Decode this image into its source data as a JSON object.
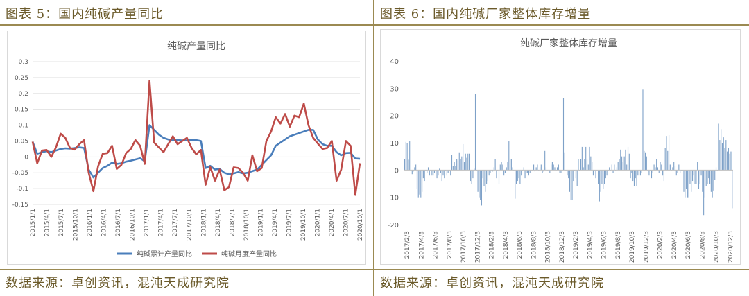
{
  "left": {
    "figure_title": "图表 5：国内纯碱产量同比",
    "source": "数据来源：卓创资讯，混沌天成研究院"
  },
  "right": {
    "figure_title": "图表 6：国内纯碱厂家整体库存增量",
    "source": "数据来源：卓创资讯，混沌天成研究院"
  },
  "colors": {
    "cumulative": "#4a7ebb",
    "monthly": "#be4b48",
    "bars": "#7ea1c8",
    "frame": "#9b8a52"
  },
  "chart_data": [
    {
      "type": "line",
      "title": "纯碱产量同比",
      "ylim": [
        -0.15,
        0.3
      ],
      "yticks": [
        -0.15,
        -0.1,
        -0.05,
        0,
        0.05,
        0.1,
        0.15,
        0.2,
        0.25,
        0.3
      ],
      "ytick_labels": [
        "-0.15",
        "-0.1",
        "-0.05",
        "0",
        "0.05",
        "0.1",
        "0.15",
        "0.2",
        "0.25",
        "0.3"
      ],
      "xtick_labels": [
        "2015/1/1",
        "2015/4/1",
        "2015/7/1",
        "2015/10/1",
        "2016/1/1",
        "2016/4/1",
        "2016/7/1",
        "2016/10/1",
        "2017/1/1",
        "2017/4/1",
        "2017/7/1",
        "2017/10/1",
        "2018/1/1",
        "2018/4/1",
        "2018/7/1",
        "2018/10/1",
        "2019/1/1",
        "2019/4/1",
        "2019/7/1",
        "2019/10/1",
        "2020/1/1",
        "2020/4/1",
        "2020/7/1",
        "2020/10/1"
      ],
      "grid": true,
      "legend_position": "bottom",
      "series": [
        {
          "name": "纯碱累计产量同比",
          "values": [
            0.048,
            0.01,
            0.015,
            0.018,
            0.015,
            0.02,
            0.025,
            0.027,
            0.026,
            0.028,
            0.03,
            0.028,
            -0.04,
            -0.065,
            -0.05,
            -0.035,
            -0.028,
            -0.018,
            -0.022,
            -0.02,
            -0.015,
            -0.012,
            -0.008,
            -0.004,
            -0.014,
            0.1,
            0.085,
            0.07,
            0.06,
            0.055,
            0.053,
            0.053,
            0.052,
            0.052,
            0.054,
            0.053,
            0.05,
            -0.035,
            -0.028,
            -0.04,
            -0.038,
            -0.05,
            -0.055,
            -0.052,
            -0.048,
            -0.052,
            -0.05,
            -0.045,
            -0.04,
            -0.025,
            -0.01,
            0.005,
            0.035,
            0.045,
            0.055,
            0.065,
            0.07,
            0.075,
            0.08,
            0.085,
            0.085,
            0.055,
            0.04,
            0.035,
            0.035,
            0.015,
            0.005,
            0.012,
            0.013,
            -0.005,
            -0.006
          ]
        },
        {
          "name": "纯碱月度产量同比",
          "values": [
            0.048,
            -0.02,
            0.02,
            0.022,
            0.0,
            0.03,
            0.073,
            0.06,
            0.028,
            0.023,
            0.04,
            0.053,
            -0.05,
            -0.108,
            -0.03,
            0.01,
            0.012,
            0.035,
            -0.038,
            -0.025,
            0.012,
            0.025,
            0.053,
            0.035,
            -0.022,
            0.24,
            0.045,
            0.03,
            0.015,
            0.04,
            0.065,
            0.04,
            0.05,
            0.06,
            0.028,
            0.008,
            0.022,
            -0.088,
            -0.032,
            -0.075,
            -0.04,
            -0.105,
            -0.095,
            -0.033,
            -0.035,
            -0.05,
            -0.075,
            0.005,
            -0.045,
            -0.035,
            0.05,
            0.08,
            0.125,
            0.105,
            0.135,
            0.095,
            0.13,
            0.125,
            0.168,
            0.1,
            0.06,
            0.042,
            0.025,
            0.028,
            0.05,
            -0.075,
            -0.04,
            0.05,
            0.035,
            -0.12,
            -0.02
          ]
        }
      ]
    },
    {
      "type": "bar",
      "title": "纯碱厂家整体库存增量",
      "ylim": [
        -20,
        40
      ],
      "yticks": [
        -20,
        -10,
        0,
        10,
        20,
        30,
        40
      ],
      "ytick_labels": [
        "-20",
        "-10",
        "0",
        "10",
        "20",
        "30",
        "40"
      ],
      "xtick_labels": [
        "2017/2/3",
        "2017/4/3",
        "2017/6/3",
        "2017/8/3",
        "2017/10/3",
        "2017/12/3",
        "2018/2/3",
        "2018/4/3",
        "2018/6/3",
        "2018/8/3",
        "2018/10/3",
        "2018/12/3",
        "2019/2/3",
        "2019/4/3",
        "2019/6/3",
        "2019/8/3",
        "2019/10/3",
        "2019/12/3",
        "2020/2/3",
        "2020/4/3",
        "2020/6/3",
        "2020/8/3",
        "2020/10/3",
        "2020/12/3"
      ],
      "grid": false,
      "values": [
        4,
        10.3,
        10,
        3.8,
        10.5,
        0,
        -1.5,
        -0.5,
        1,
        2,
        -7,
        -10,
        -9,
        -10,
        -8,
        -3,
        -4,
        0,
        -1,
        1,
        -2,
        0,
        -2,
        -2,
        -1,
        0,
        -3,
        -2,
        0.5,
        -1,
        -4,
        -2,
        -3,
        0,
        -2,
        -1,
        0,
        -2,
        5.5,
        1.5,
        3,
        1.5,
        4,
        3.5,
        6.5,
        4,
        5,
        9.5,
        3,
        6,
        4.5,
        6,
        6,
        -4,
        -5,
        -3,
        0.5,
        27.8,
        0,
        -8,
        -10,
        -11,
        -13,
        -3,
        -6,
        -8,
        -5,
        -4,
        -2,
        -1,
        0,
        -0.5,
        1,
        4,
        -3,
        0,
        -5,
        2,
        3,
        2,
        -2,
        -1,
        1,
        3,
        10.5,
        4,
        4,
        1,
        0,
        -10.5,
        -5,
        -4,
        -3,
        -5,
        -2,
        0,
        1,
        -3,
        -1,
        -1,
        -2,
        -1,
        0,
        0,
        2,
        -0.5,
        1,
        2,
        0,
        1,
        2,
        -1,
        -0.5,
        7,
        1,
        0,
        0,
        -1,
        2,
        3,
        2,
        1,
        0,
        1,
        2,
        -1,
        -1,
        0,
        26.5,
        6.5,
        0,
        -2,
        -3,
        -8,
        -11,
        -11,
        -4,
        0,
        -3,
        -6,
        4,
        0,
        4,
        8.5,
        1,
        4,
        8.5,
        4,
        2,
        8.5,
        5,
        3,
        -2,
        0,
        -3,
        0,
        -5,
        -11.5,
        -8,
        -5,
        -7,
        -5,
        -3,
        -2,
        0,
        1,
        0,
        2,
        -1,
        2,
        0,
        1,
        3,
        4,
        7.5,
        5,
        3,
        5,
        7.5,
        2,
        8.5,
        6,
        -3,
        -1,
        -4,
        -6,
        -3,
        -6,
        -2,
        0,
        -2,
        -1,
        29.5,
        7,
        6.5,
        5,
        0,
        -2,
        0,
        -3,
        -1,
        2,
        1,
        4,
        1,
        -1,
        3,
        2,
        -2,
        -4,
        8,
        12.5,
        7,
        12.8,
        2,
        0,
        1,
        3,
        1.5,
        -2,
        -1,
        2,
        -1,
        0,
        0,
        -8,
        -10,
        -7,
        -10,
        -10,
        -5,
        -8,
        -4,
        -2,
        -5,
        -5,
        3,
        -7,
        -5,
        -2,
        -8,
        -16.5,
        -10,
        -6,
        -5,
        -3,
        -5,
        -8,
        -10,
        -7.5,
        -3.5,
        1,
        0,
        17,
        11,
        15,
        10,
        12,
        8,
        11,
        6.8,
        8,
        6,
        6.8,
        -14
      ]
    }
  ]
}
